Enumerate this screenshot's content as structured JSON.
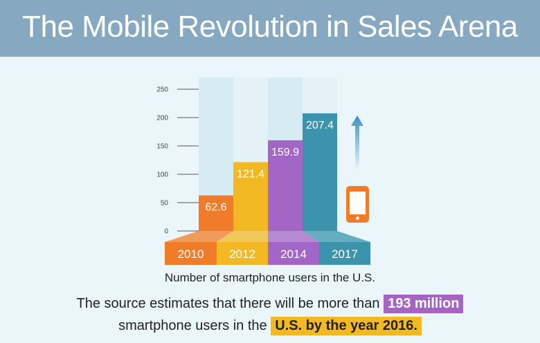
{
  "header": {
    "title": "The Mobile Revolution in Sales Arena"
  },
  "chart_data": {
    "type": "bar",
    "categories": [
      "2010",
      "2012",
      "2014",
      "2017"
    ],
    "values": [
      62.6,
      121.4,
      159.9,
      207.4
    ],
    "value_labels": [
      "62.6",
      "121.4",
      "159.9",
      "207.4"
    ],
    "yticks": [
      0,
      50,
      100,
      150,
      200,
      250
    ],
    "ylim": [
      0,
      250
    ],
    "xlabel": "Number of smartphone users in the U.S.",
    "grid": true,
    "colors": [
      "#f07c2a",
      "#f2b924",
      "#a466c6",
      "#3b94ac"
    ],
    "base_colors": [
      "#f07c2a",
      "#f2b924",
      "#a466c6",
      "#3b94ac"
    ],
    "icons": [
      "up-arrow-icon",
      "smartphone-icon"
    ]
  },
  "note": {
    "line1_text": "The source estimates that there will be more than",
    "line1_highlight": "193 million",
    "line2_text": "smartphone users in the",
    "line2_highlight": "U.S. by the year 2016."
  }
}
